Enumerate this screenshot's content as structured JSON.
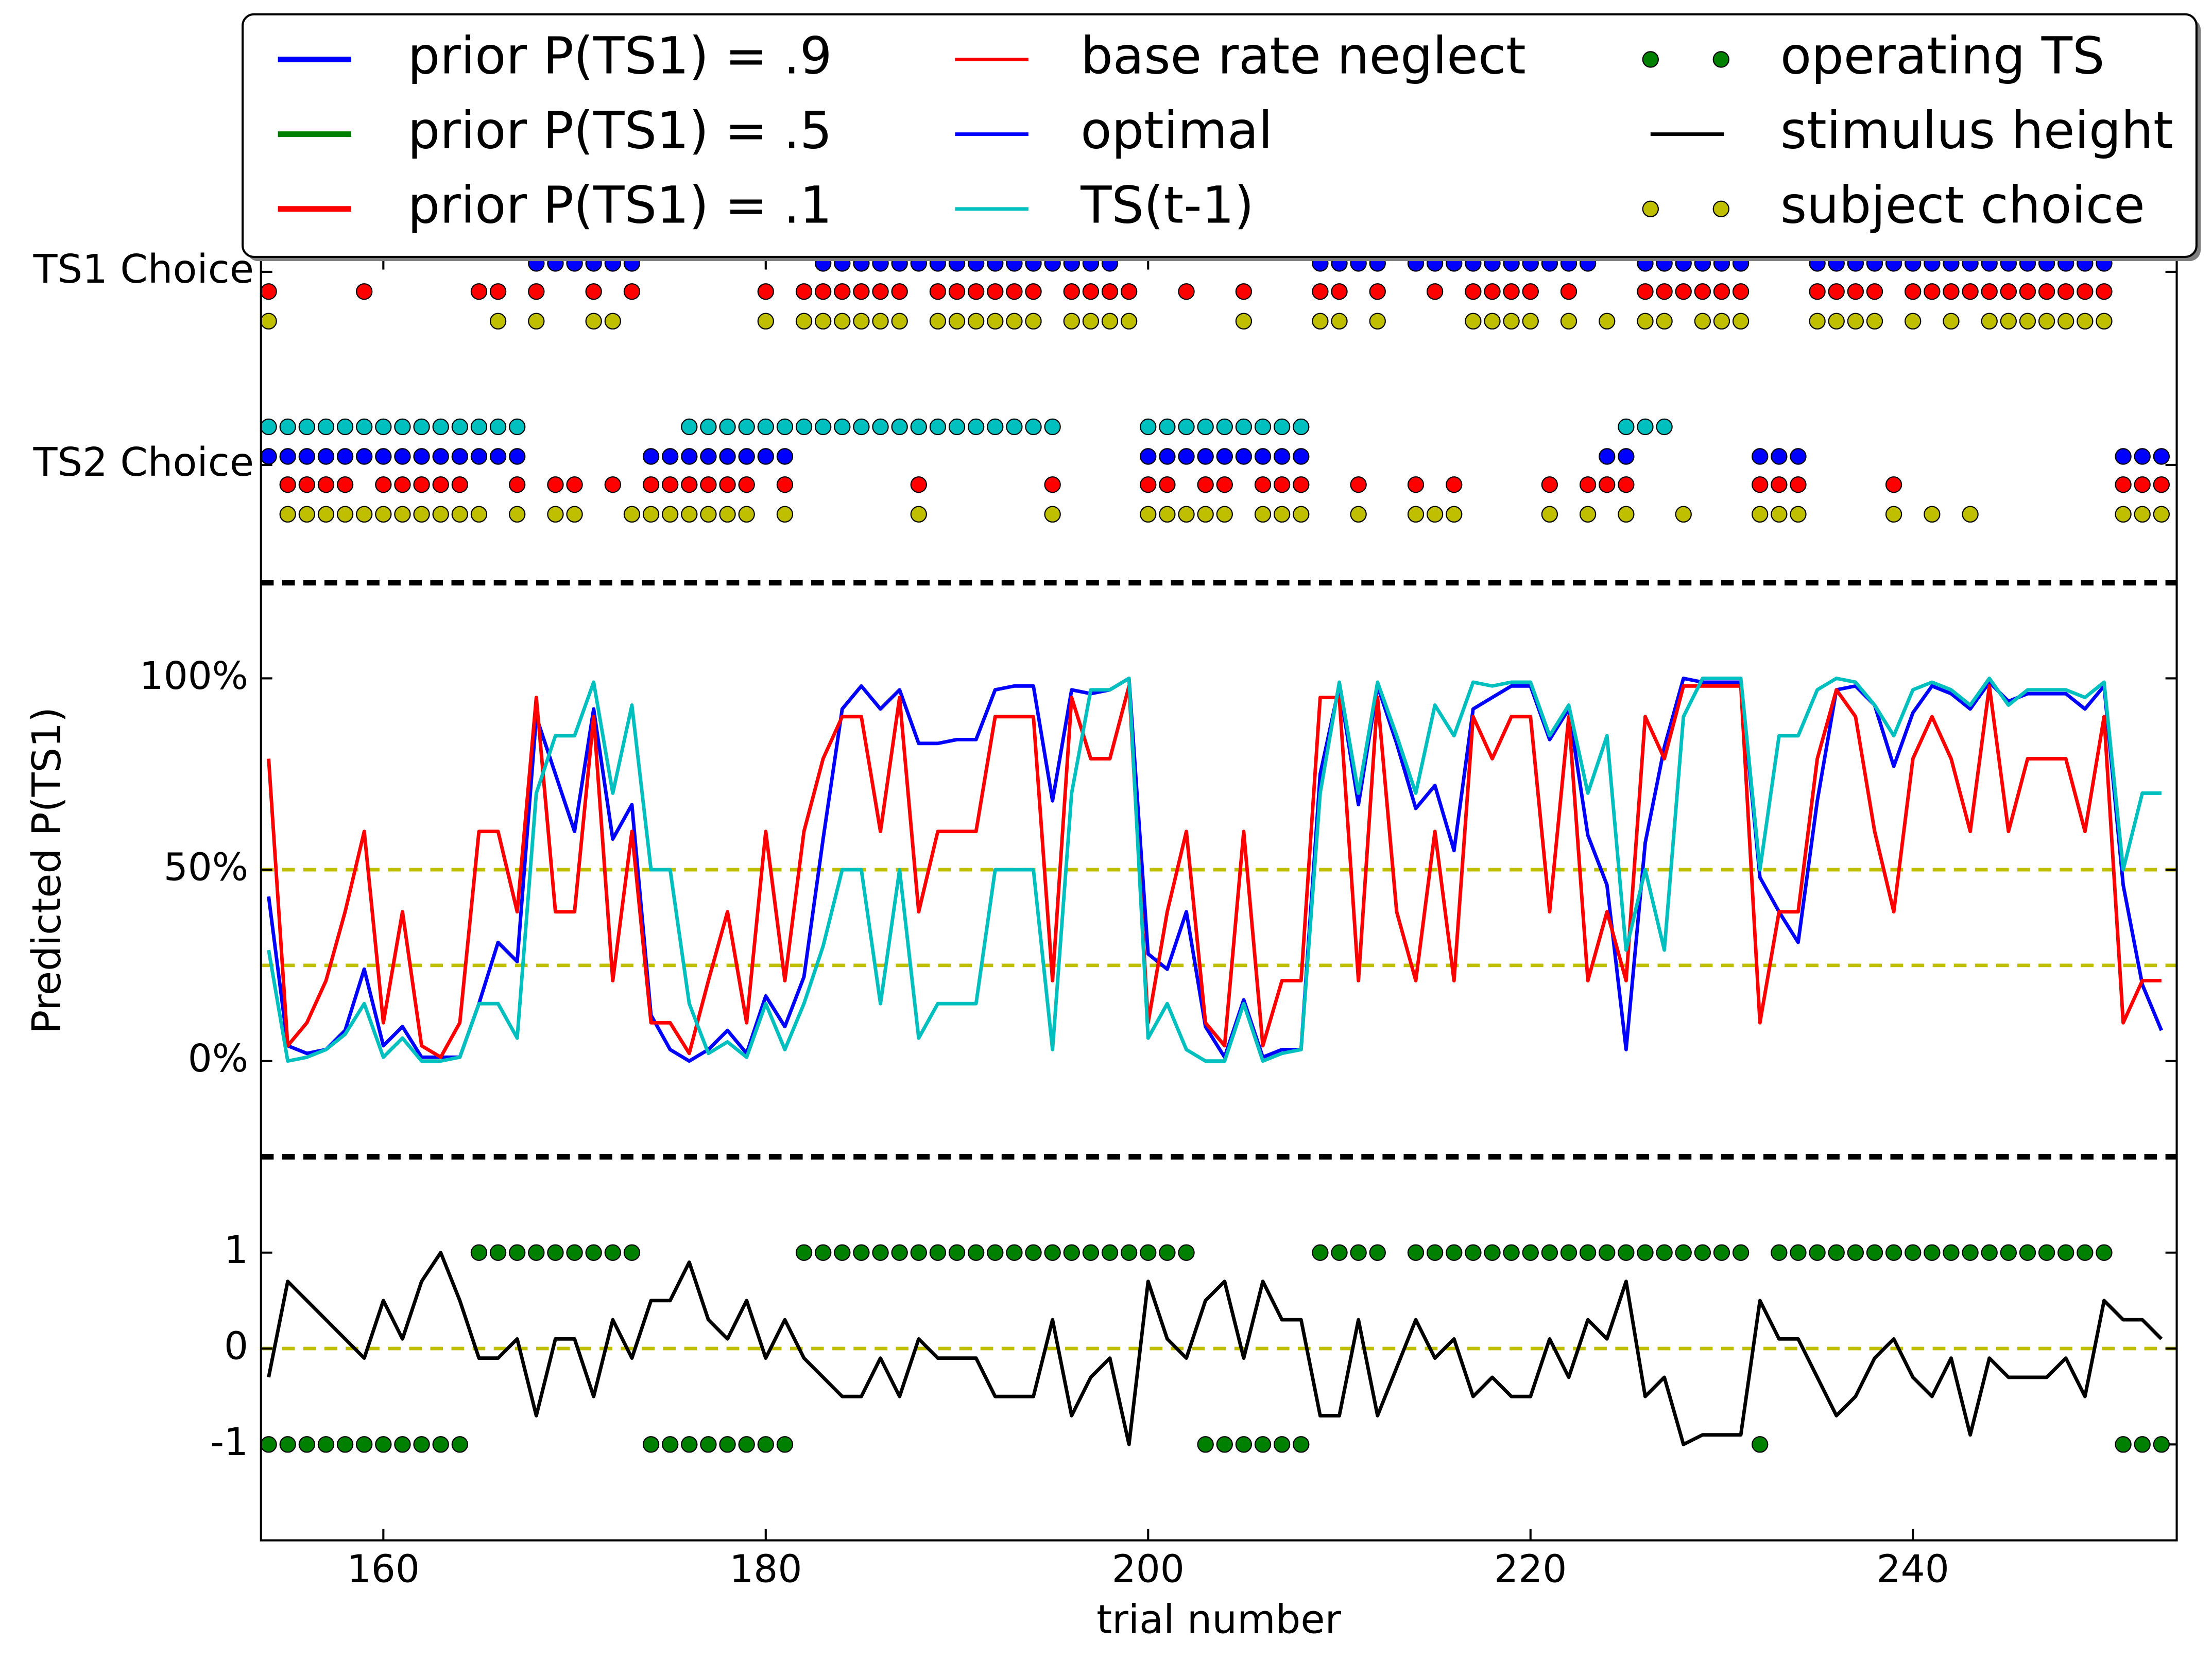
{
  "chart_data": [
    {
      "type": "scatter",
      "ylim": [
        2.61,
        0.93
      ],
      "yticks": [
        {
          "value": 1,
          "label": "TS1 Choice"
        },
        {
          "value": 2,
          "label": "TS2 Choice"
        }
      ],
      "legend": [
        {
          "name": "prior P(TS1) = .9",
          "color": "#0000ff",
          "style": "thick"
        },
        {
          "name": "prior P(TS1) = .5",
          "color": "#008000",
          "style": "thick"
        },
        {
          "name": "prior P(TS1) = .1",
          "color": "#ff0000",
          "style": "thick"
        },
        {
          "name": "base rate neglect",
          "color": "#ff0000",
          "style": "line"
        },
        {
          "name": "optimal",
          "color": "#0000ff",
          "style": "line"
        },
        {
          "name": "TS(t-1)",
          "color": "#00bfbf",
          "style": "line"
        },
        {
          "name": "operating TS",
          "color": "#008000",
          "style": "dots"
        },
        {
          "name": "stimulus height",
          "color": "#000000",
          "style": "line"
        },
        {
          "name": "subject choice",
          "color": "#bfbf00",
          "style": "dots"
        }
      ],
      "series": [
        {
          "color": "#00bfbf",
          "values": [
            2,
            2,
            2,
            2,
            2,
            2,
            2,
            2,
            2,
            2,
            2,
            2,
            2,
            2,
            1,
            1,
            1,
            1,
            1,
            1,
            null,
            null,
            2,
            2,
            2,
            2,
            2,
            2,
            2,
            2,
            2,
            2,
            2,
            2,
            2,
            2,
            2,
            2,
            2,
            2,
            2,
            2,
            1,
            1,
            1,
            1,
            2,
            2,
            2,
            2,
            2,
            2,
            2,
            2,
            2,
            1,
            1,
            1,
            1,
            1,
            1,
            1,
            1,
            1,
            1,
            1,
            1,
            1,
            1,
            1,
            1,
            2,
            2,
            2,
            1,
            1,
            1,
            1,
            null,
            1,
            1,
            1,
            1,
            1,
            1,
            1,
            1,
            1,
            1,
            1,
            1,
            1,
            1,
            1,
            1,
            1,
            1,
            null,
            1,
            1
          ]
        },
        {
          "color": "#0000ff",
          "values": [
            2,
            2,
            2,
            2,
            2,
            2,
            2,
            2,
            2,
            2,
            2,
            2,
            2,
            2,
            1,
            1,
            1,
            1,
            1,
            1,
            2,
            2,
            2,
            2,
            2,
            2,
            2,
            2,
            null,
            1,
            1,
            1,
            1,
            1,
            1,
            1,
            1,
            1,
            1,
            1,
            1,
            1,
            1,
            1,
            1,
            null,
            2,
            2,
            2,
            2,
            2,
            2,
            2,
            2,
            2,
            1,
            1,
            1,
            1,
            null,
            1,
            1,
            1,
            1,
            1,
            1,
            1,
            1,
            1,
            1,
            2,
            2,
            1,
            1,
            1,
            1,
            1,
            1,
            2,
            2,
            2,
            1,
            1,
            1,
            1,
            1,
            1,
            1,
            1,
            1,
            1,
            1,
            1,
            1,
            1,
            1,
            1,
            2,
            2,
            2
          ]
        },
        {
          "color": "#ff0000",
          "values": [
            1,
            2,
            2,
            2,
            2,
            1,
            2,
            2,
            2,
            2,
            2,
            1,
            1,
            2,
            1,
            2,
            2,
            1,
            2,
            1,
            2,
            2,
            2,
            2,
            2,
            2,
            1,
            2,
            1,
            1,
            1,
            1,
            1,
            1,
            2,
            1,
            1,
            1,
            1,
            1,
            1,
            2,
            1,
            1,
            1,
            1,
            2,
            2,
            1,
            2,
            2,
            1,
            2,
            2,
            2,
            1,
            1,
            2,
            1,
            null,
            2,
            1,
            2,
            1,
            1,
            1,
            1,
            2,
            1,
            2,
            2,
            2,
            1,
            1,
            1,
            1,
            1,
            1,
            2,
            2,
            2,
            1,
            1,
            1,
            1,
            2,
            1,
            1,
            1,
            1,
            1,
            1,
            1,
            1,
            1,
            1,
            1,
            2,
            2,
            2
          ]
        },
        {
          "color": "#bfbf00",
          "values": [
            1,
            2,
            2,
            2,
            2,
            2,
            2,
            2,
            2,
            2,
            2,
            2,
            1,
            2,
            1,
            2,
            2,
            1,
            1,
            2,
            2,
            2,
            2,
            2,
            2,
            2,
            1,
            2,
            1,
            1,
            1,
            1,
            1,
            1,
            2,
            1,
            1,
            1,
            1,
            1,
            1,
            2,
            1,
            1,
            1,
            1,
            2,
            2,
            2,
            2,
            2,
            1,
            2,
            2,
            2,
            1,
            1,
            2,
            1,
            null,
            2,
            2,
            2,
            1,
            1,
            1,
            1,
            2,
            1,
            2,
            1,
            2,
            1,
            1,
            2,
            1,
            1,
            1,
            2,
            2,
            2,
            1,
            1,
            1,
            1,
            2,
            1,
            2,
            1,
            2,
            1,
            1,
            1,
            1,
            1,
            1,
            1,
            2,
            2,
            2
          ]
        }
      ]
    },
    {
      "type": "line",
      "ylabel": "Predicted P(TS1)",
      "ylim": [
        -25,
        125
      ],
      "yticks": [
        {
          "value": 0,
          "label": "0%"
        },
        {
          "value": 50,
          "label": "50%"
        },
        {
          "value": 100,
          "label": "100%"
        }
      ],
      "hlines": [
        50,
        25
      ],
      "hline_color": "#bfbf00",
      "series": [
        {
          "color": "#0000ff",
          "values": [
            43,
            4,
            2,
            3,
            8,
            24,
            4,
            9,
            1,
            1,
            1,
            15,
            31,
            26,
            90,
            75,
            60,
            92,
            58,
            67,
            12,
            3,
            0,
            3,
            8,
            2,
            17,
            9,
            22,
            58,
            92,
            98,
            92,
            97,
            83,
            83,
            84,
            84,
            97,
            98,
            98,
            68,
            97,
            96,
            97,
            100,
            28,
            24,
            39,
            9,
            1,
            16,
            1,
            3,
            3,
            75,
            98,
            67,
            98,
            83,
            66,
            72,
            55,
            92,
            95,
            98,
            98,
            84,
            92,
            59,
            46,
            3,
            57,
            82,
            100,
            99,
            99,
            99,
            48,
            39,
            31,
            68,
            97,
            98,
            93,
            77,
            91,
            98,
            96,
            92,
            99,
            94,
            96,
            96,
            96,
            92,
            98,
            46,
            20,
            8
          ]
        },
        {
          "color": "#ff0000",
          "values": [
            79,
            4,
            10,
            21,
            39,
            60,
            10,
            39,
            4,
            1,
            10,
            60,
            60,
            39,
            95,
            39,
            39,
            90,
            21,
            60,
            10,
            10,
            2,
            21,
            39,
            10,
            60,
            21,
            60,
            79,
            90,
            90,
            60,
            95,
            39,
            60,
            60,
            60,
            90,
            90,
            90,
            21,
            95,
            79,
            79,
            98,
            10,
            39,
            60,
            10,
            4,
            60,
            4,
            21,
            21,
            95,
            95,
            21,
            95,
            39,
            21,
            60,
            21,
            90,
            79,
            90,
            90,
            39,
            90,
            21,
            39,
            21,
            90,
            79,
            98,
            98,
            98,
            98,
            10,
            39,
            39,
            79,
            97,
            90,
            60,
            39,
            79,
            90,
            79,
            60,
            98,
            60,
            79,
            79,
            79,
            60,
            90,
            10,
            21,
            21
          ]
        },
        {
          "color": "#00bfbf",
          "values": [
            29,
            0,
            1,
            3,
            7,
            15,
            1,
            6,
            0,
            0,
            1,
            15,
            15,
            6,
            70,
            85,
            85,
            99,
            70,
            93,
            50,
            50,
            15,
            2,
            5,
            1,
            15,
            3,
            15,
            30,
            50,
            50,
            15,
            50,
            6,
            15,
            15,
            15,
            50,
            50,
            50,
            3,
            70,
            97,
            97,
            100,
            6,
            15,
            3,
            0,
            0,
            15,
            0,
            2,
            3,
            70,
            99,
            70,
            99,
            85,
            70,
            93,
            85,
            99,
            98,
            99,
            99,
            85,
            93,
            70,
            85,
            29,
            50,
            29,
            90,
            100,
            100,
            100,
            50,
            85,
            85,
            97,
            100,
            99,
            93,
            85,
            97,
            99,
            97,
            93,
            100,
            93,
            97,
            97,
            97,
            95,
            99,
            50,
            70,
            70
          ]
        }
      ]
    },
    {
      "type": "line",
      "xlabel": "trial number",
      "x": [
        154,
        155,
        156,
        157,
        158,
        159,
        160,
        161,
        162,
        163,
        164,
        165,
        166,
        167,
        168,
        169,
        170,
        171,
        172,
        173,
        174,
        175,
        176,
        177,
        178,
        179,
        180,
        181,
        182,
        183,
        184,
        185,
        186,
        187,
        188,
        189,
        190,
        191,
        192,
        193,
        194,
        195,
        196,
        197,
        198,
        199,
        200,
        201,
        202,
        203,
        204,
        205,
        206,
        207,
        208,
        209,
        210,
        211,
        212,
        213,
        214,
        215,
        216,
        217,
        218,
        219,
        220,
        221,
        222,
        223,
        224,
        225,
        226,
        227,
        228,
        229,
        230,
        231,
        232,
        233,
        234,
        235,
        236,
        237,
        238,
        239,
        240,
        241,
        242,
        243,
        244,
        245,
        246,
        247,
        248,
        249,
        250,
        251,
        252,
        253
      ],
      "xlim": [
        153.6,
        253.8
      ],
      "xticks": [
        160,
        180,
        200,
        220,
        240
      ],
      "ylim": [
        -2,
        2
      ],
      "yticks": [
        -1,
        0,
        1
      ],
      "hlines": [
        0
      ],
      "hline_color": "#bfbf00",
      "series": [
        {
          "color": "#000000",
          "style": "line",
          "values": [
            -0.3,
            0.7,
            0.5,
            0.3,
            0.1,
            -0.1,
            0.5,
            0.1,
            0.7,
            1,
            0.5,
            -0.1,
            -0.1,
            0.1,
            -0.7,
            0.1,
            0.1,
            -0.5,
            0.3,
            -0.1,
            0.5,
            0.5,
            0.9,
            0.3,
            0.1,
            0.5,
            -0.1,
            0.3,
            -0.1,
            -0.3,
            -0.5,
            -0.5,
            -0.1,
            -0.5,
            0.1,
            -0.1,
            -0.1,
            -0.1,
            -0.5,
            -0.5,
            -0.5,
            0.3,
            -0.7,
            -0.3,
            -0.1,
            -1,
            0.7,
            0.1,
            -0.1,
            0.5,
            0.7,
            -0.1,
            0.7,
            0.3,
            0.3,
            -0.7,
            -0.7,
            0.3,
            -0.7,
            -0.2,
            0.3,
            -0.1,
            0.1,
            -0.5,
            -0.3,
            -0.5,
            -0.5,
            0.1,
            -0.3,
            0.3,
            0.1,
            0.7,
            -0.5,
            -0.3,
            -1,
            -0.9,
            -0.9,
            -0.9,
            0.5,
            0.1,
            0.1,
            -0.3,
            -0.7,
            -0.5,
            -0.1,
            0.1,
            -0.3,
            -0.5,
            -0.1,
            -0.9,
            -0.1,
            -0.3,
            -0.3,
            -0.3,
            -0.1,
            -0.5,
            0.5,
            0.3,
            0.3,
            0.1
          ]
        },
        {
          "color": "#008000",
          "style": "dots",
          "values": [
            -1,
            -1,
            -1,
            -1,
            -1,
            -1,
            -1,
            -1,
            -1,
            -1,
            -1,
            1,
            1,
            1,
            1,
            1,
            1,
            1,
            1,
            1,
            -1,
            -1,
            -1,
            -1,
            -1,
            -1,
            -1,
            -1,
            1,
            1,
            1,
            1,
            1,
            1,
            1,
            1,
            1,
            1,
            1,
            1,
            1,
            1,
            1,
            1,
            1,
            1,
            1,
            1,
            1,
            -1,
            -1,
            -1,
            -1,
            -1,
            -1,
            1,
            1,
            1,
            1,
            null,
            1,
            1,
            1,
            1,
            1,
            1,
            1,
            1,
            1,
            1,
            1,
            1,
            1,
            1,
            1,
            1,
            1,
            1,
            -1,
            1,
            1,
            1,
            1,
            1,
            1,
            1,
            1,
            1,
            1,
            1,
            1,
            1,
            1,
            1,
            1,
            1,
            1,
            -1,
            -1,
            -1
          ]
        }
      ]
    }
  ]
}
